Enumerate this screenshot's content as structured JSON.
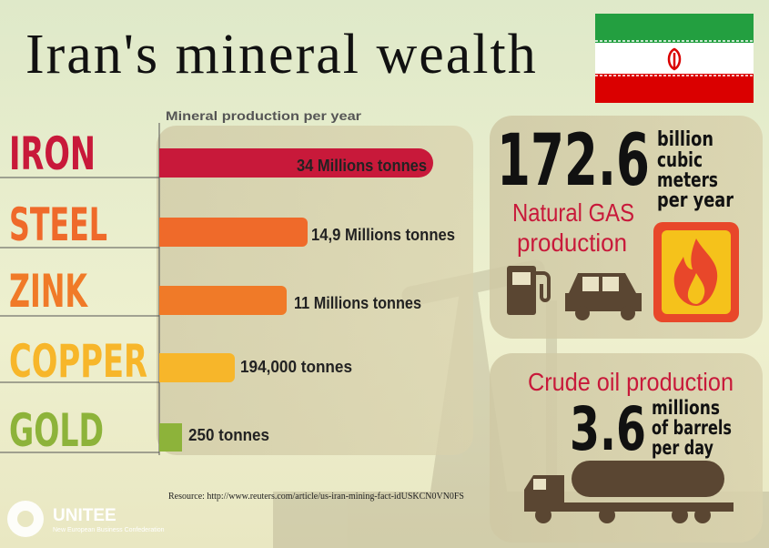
{
  "header": {
    "title": "Iran's mineral wealth"
  },
  "production": {
    "caption": "Mineral production per year",
    "rows": [
      {
        "mineral": "IRON",
        "amount": "34 Millions tonnes"
      },
      {
        "mineral": "STEEL",
        "amount": "14,9 Millions tonnes"
      },
      {
        "mineral": "ZINK",
        "amount": "11 Millions tonnes"
      },
      {
        "mineral": "COPPER",
        "amount": "194,000 tonnes"
      },
      {
        "mineral": "GOLD",
        "amount": "250 tonnes"
      }
    ],
    "source": "Resource: http://www.reuters.com/article/us-iran-mining-fact-idUSKCN0VN0FS"
  },
  "gas": {
    "value": "172.6",
    "unit_lines": [
      "billion",
      "cubic",
      "meters",
      "per year"
    ],
    "label_lines": [
      "Natural GAS",
      "production"
    ]
  },
  "oil": {
    "label": "Crude oil production",
    "value": "3.6",
    "unit_lines": [
      "millions",
      "of barrels",
      "per day"
    ]
  },
  "logo": {
    "name": "UNITEE",
    "tagline": "New European Business Confederation"
  }
}
